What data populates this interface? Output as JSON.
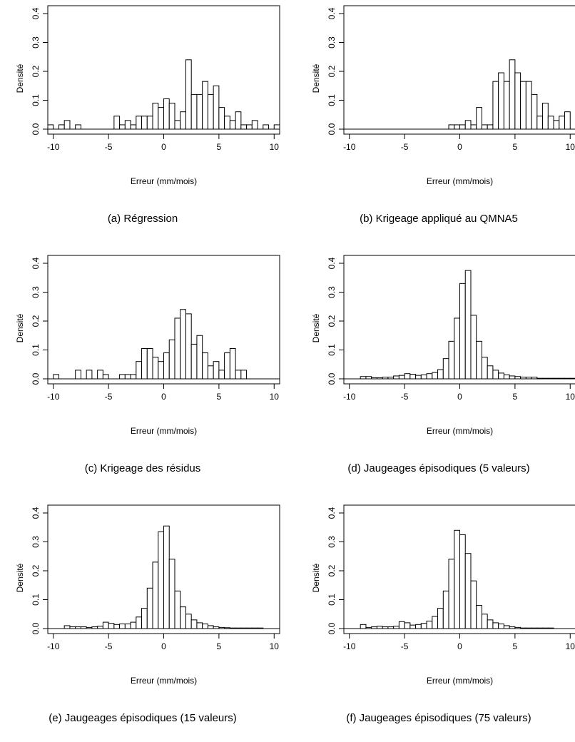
{
  "figure": {
    "panels": [
      {
        "caption": "(a) Régression"
      },
      {
        "caption": "(b) Krigeage appliqué au QMNA5"
      },
      {
        "caption": "(c) Krigeage des résidus"
      },
      {
        "caption": "(d) Jaugeages épisodiques (5 valeurs)"
      },
      {
        "caption": "(e) Jaugeages épisodiques (15 valeurs)"
      },
      {
        "caption": "(f) Jaugeages épisodiques (75 valeurs)"
      }
    ]
  },
  "chart_data": [
    {
      "type": "bar",
      "title": "(a) Régression",
      "xlabel": "Erreur (mm/mois)",
      "ylabel": "Densité",
      "xlim": [
        -10.5,
        10.5
      ],
      "ylim": [
        0,
        0.4
      ],
      "xticks": [
        "-10",
        "-5",
        "0",
        "5",
        "10"
      ],
      "yticks": [
        "0.0",
        "0.1",
        "0.2",
        "0.3",
        "0.4"
      ],
      "bin_start": -11,
      "bin_width": 0.5,
      "values": [
        0.03,
        0.015,
        0,
        0.015,
        0.03,
        0,
        0.015,
        0,
        0,
        0,
        0,
        0,
        0,
        0.045,
        0.015,
        0.03,
        0.015,
        0.045,
        0.045,
        0.045,
        0.09,
        0.075,
        0.105,
        0.09,
        0.03,
        0.06,
        0.24,
        0.12,
        0.12,
        0.165,
        0.12,
        0.15,
        0.075,
        0.045,
        0.03,
        0.06,
        0.015,
        0.015,
        0.03,
        0,
        0.015,
        0,
        0.015,
        0,
        0
      ]
    },
    {
      "type": "bar",
      "title": "(b) Krigeage appliqué au QMNA5",
      "xlabel": "Erreur (mm/mois)",
      "ylabel": "Densité",
      "xlim": [
        -10.5,
        10.5
      ],
      "ylim": [
        0,
        0.4
      ],
      "xticks": [
        "-10",
        "-5",
        "0",
        "5",
        "10"
      ],
      "yticks": [
        "0.0",
        "0.1",
        "0.2",
        "0.3",
        "0.4"
      ],
      "bin_start": -11,
      "bin_width": 0.5,
      "values": [
        0.015,
        0,
        0,
        0,
        0,
        0,
        0,
        0,
        0,
        0,
        0,
        0,
        0,
        0,
        0,
        0,
        0,
        0,
        0,
        0,
        0.015,
        0.015,
        0.015,
        0.03,
        0.015,
        0.075,
        0.015,
        0.015,
        0.165,
        0.195,
        0.165,
        0.24,
        0.195,
        0.165,
        0.165,
        0.12,
        0.045,
        0.09,
        0.045,
        0.03,
        0.045,
        0.06,
        0,
        0,
        0,
        0.015,
        0.03,
        0,
        0.015,
        0.03,
        0,
        0,
        0,
        0.015,
        0
      ]
    },
    {
      "type": "bar",
      "title": "(c) Krigeage des résidus",
      "xlabel": "Erreur (mm/mois)",
      "ylabel": "Densité",
      "xlim": [
        -10.5,
        10.5
      ],
      "ylim": [
        0,
        0.4
      ],
      "xticks": [
        "-10",
        "-5",
        "0",
        "5",
        "10"
      ],
      "yticks": [
        "0.0",
        "0.1",
        "0.2",
        "0.3",
        "0.4"
      ],
      "bin_start": -10,
      "bin_width": 0.5,
      "values": [
        0.015,
        0,
        0,
        0,
        0.03,
        0,
        0.03,
        0,
        0.03,
        0.015,
        0,
        0,
        0.015,
        0.015,
        0.015,
        0.06,
        0.105,
        0.105,
        0.075,
        0.06,
        0.09,
        0.135,
        0.21,
        0.24,
        0.225,
        0.12,
        0.15,
        0.09,
        0.045,
        0.06,
        0.03,
        0.09,
        0.105,
        0.03,
        0.03,
        0,
        0,
        0,
        0,
        0,
        0,
        0,
        0,
        0,
        0,
        0,
        0,
        0,
        0,
        0,
        0,
        0,
        0,
        0.015,
        0,
        0,
        0.015
      ]
    },
    {
      "type": "bar",
      "title": "(d) Jaugeages épisodiques (5 valeurs)",
      "xlabel": "Erreur (mm/mois)",
      "ylabel": "Densité",
      "xlim": [
        -10.5,
        10.5
      ],
      "ylim": [
        0,
        0.4
      ],
      "xticks": [
        "-10",
        "-5",
        "0",
        "5",
        "10"
      ],
      "yticks": [
        "0.0",
        "0.1",
        "0.2",
        "0.3",
        "0.4"
      ],
      "bin_start": -9,
      "bin_width": 0.5,
      "values": [
        0.008,
        0.008,
        0.004,
        0.004,
        0.006,
        0.006,
        0.01,
        0.012,
        0.018,
        0.016,
        0.012,
        0.014,
        0.018,
        0.022,
        0.032,
        0.07,
        0.13,
        0.21,
        0.33,
        0.375,
        0.22,
        0.13,
        0.075,
        0.045,
        0.03,
        0.02,
        0.014,
        0.01,
        0.008,
        0.006,
        0.006,
        0.006,
        0.002,
        0.002,
        0.002,
        0.002,
        0.002,
        0.002,
        0.002,
        0.002,
        0.002
      ]
    },
    {
      "type": "bar",
      "title": "(e) Jaugeages épisodiques (15 valeurs)",
      "xlabel": "Erreur (mm/mois)",
      "ylabel": "Densité",
      "xlim": [
        -10.5,
        10.5
      ],
      "ylim": [
        0,
        0.4
      ],
      "xticks": [
        "-10",
        "-5",
        "0",
        "5",
        "10"
      ],
      "yticks": [
        "0.0",
        "0.1",
        "0.2",
        "0.3",
        "0.4"
      ],
      "bin_start": -9,
      "bin_width": 0.5,
      "values": [
        0.01,
        0.006,
        0.006,
        0.006,
        0.004,
        0.006,
        0.008,
        0.022,
        0.018,
        0.014,
        0.016,
        0.016,
        0.022,
        0.04,
        0.07,
        0.14,
        0.23,
        0.335,
        0.355,
        0.24,
        0.13,
        0.075,
        0.05,
        0.03,
        0.02,
        0.016,
        0.01,
        0.006,
        0.004,
        0.003,
        0.002,
        0.002,
        0.002,
        0.002,
        0.002,
        0.002,
        0,
        0,
        0,
        0.004
      ]
    },
    {
      "type": "bar",
      "title": "(f) Jaugeages épisodiques (75 valeurs)",
      "xlabel": "Erreur (mm/mois)",
      "ylabel": "Densité",
      "xlim": [
        -10.5,
        10.5
      ],
      "ylim": [
        0,
        0.4
      ],
      "xticks": [
        "-10",
        "-5",
        "0",
        "5",
        "10"
      ],
      "yticks": [
        "0.0",
        "0.1",
        "0.2",
        "0.3",
        "0.4"
      ],
      "bin_start": -9,
      "bin_width": 0.5,
      "values": [
        0.014,
        0.004,
        0.006,
        0.008,
        0.006,
        0.006,
        0.008,
        0.024,
        0.02,
        0.012,
        0.014,
        0.018,
        0.026,
        0.042,
        0.07,
        0.13,
        0.24,
        0.34,
        0.325,
        0.26,
        0.165,
        0.08,
        0.05,
        0.03,
        0.02,
        0.016,
        0.01,
        0.006,
        0.004,
        0.002,
        0.002,
        0.002,
        0.002,
        0.002,
        0.002
      ]
    }
  ]
}
